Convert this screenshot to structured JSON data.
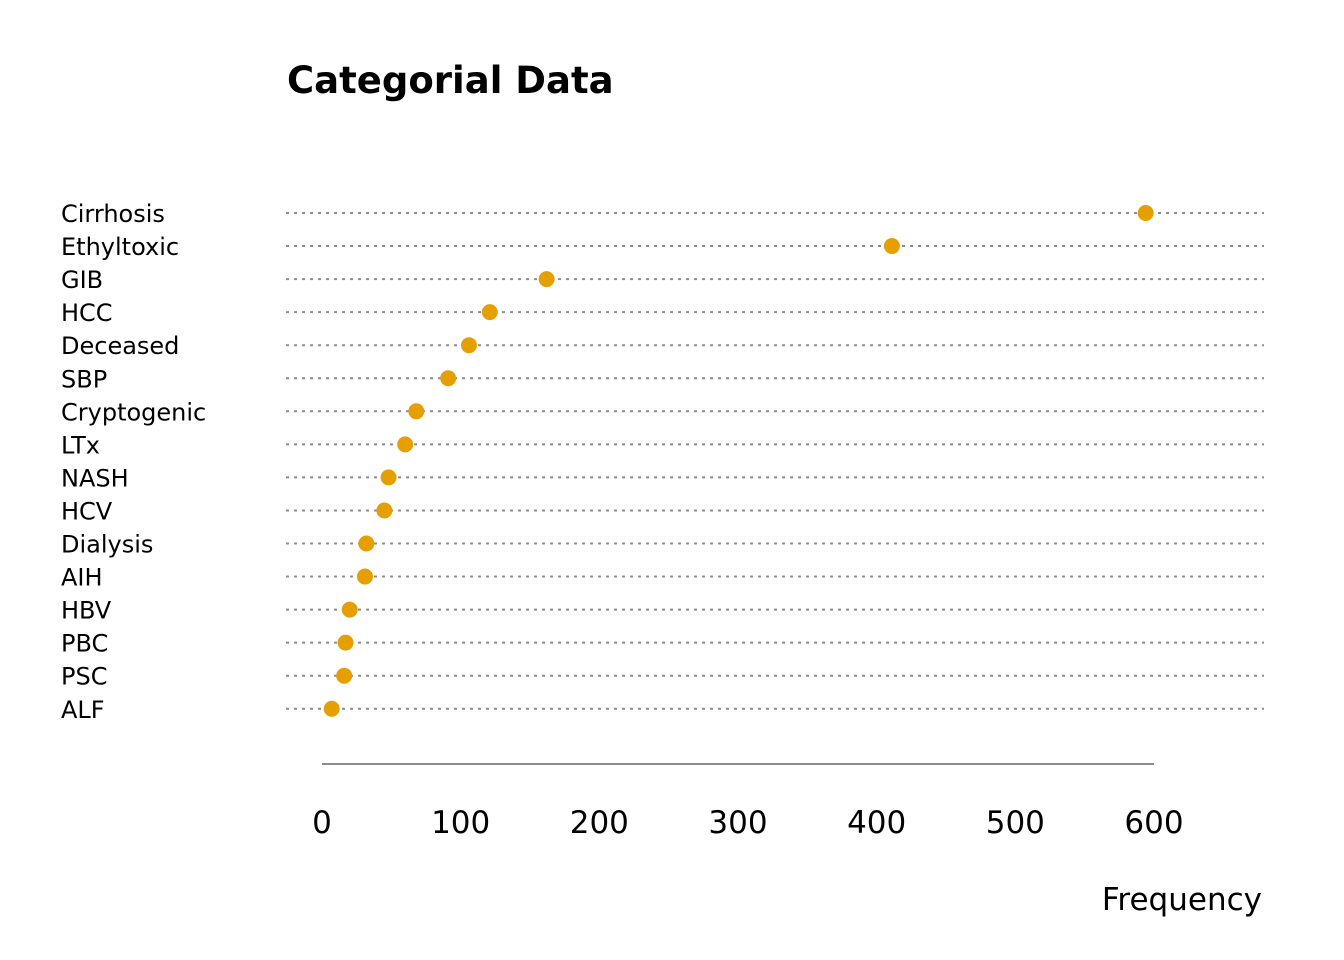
{
  "chart_data": {
    "type": "scatter",
    "title": "Categorial Data",
    "xlabel": "Frequency",
    "ylabel": "",
    "xlim": [
      0,
      600
    ],
    "xticks": [
      0,
      100,
      200,
      300,
      400,
      500,
      600
    ],
    "grid": false,
    "legend": "none",
    "point_color": "#E69F00",
    "categories": [
      "Cirrhosis",
      "Ethyltoxic",
      "GIB",
      "HCC",
      "Deceased",
      "SBP",
      "Cryptogenic",
      "LTx",
      "NASH",
      "HCV",
      "Dialysis",
      "AIH",
      "HBV",
      "PBC",
      "PSC",
      "ALF"
    ],
    "values": [
      594,
      411,
      162,
      121,
      106,
      91,
      68,
      60,
      48,
      45,
      32,
      31,
      20,
      17,
      16,
      7
    ]
  }
}
